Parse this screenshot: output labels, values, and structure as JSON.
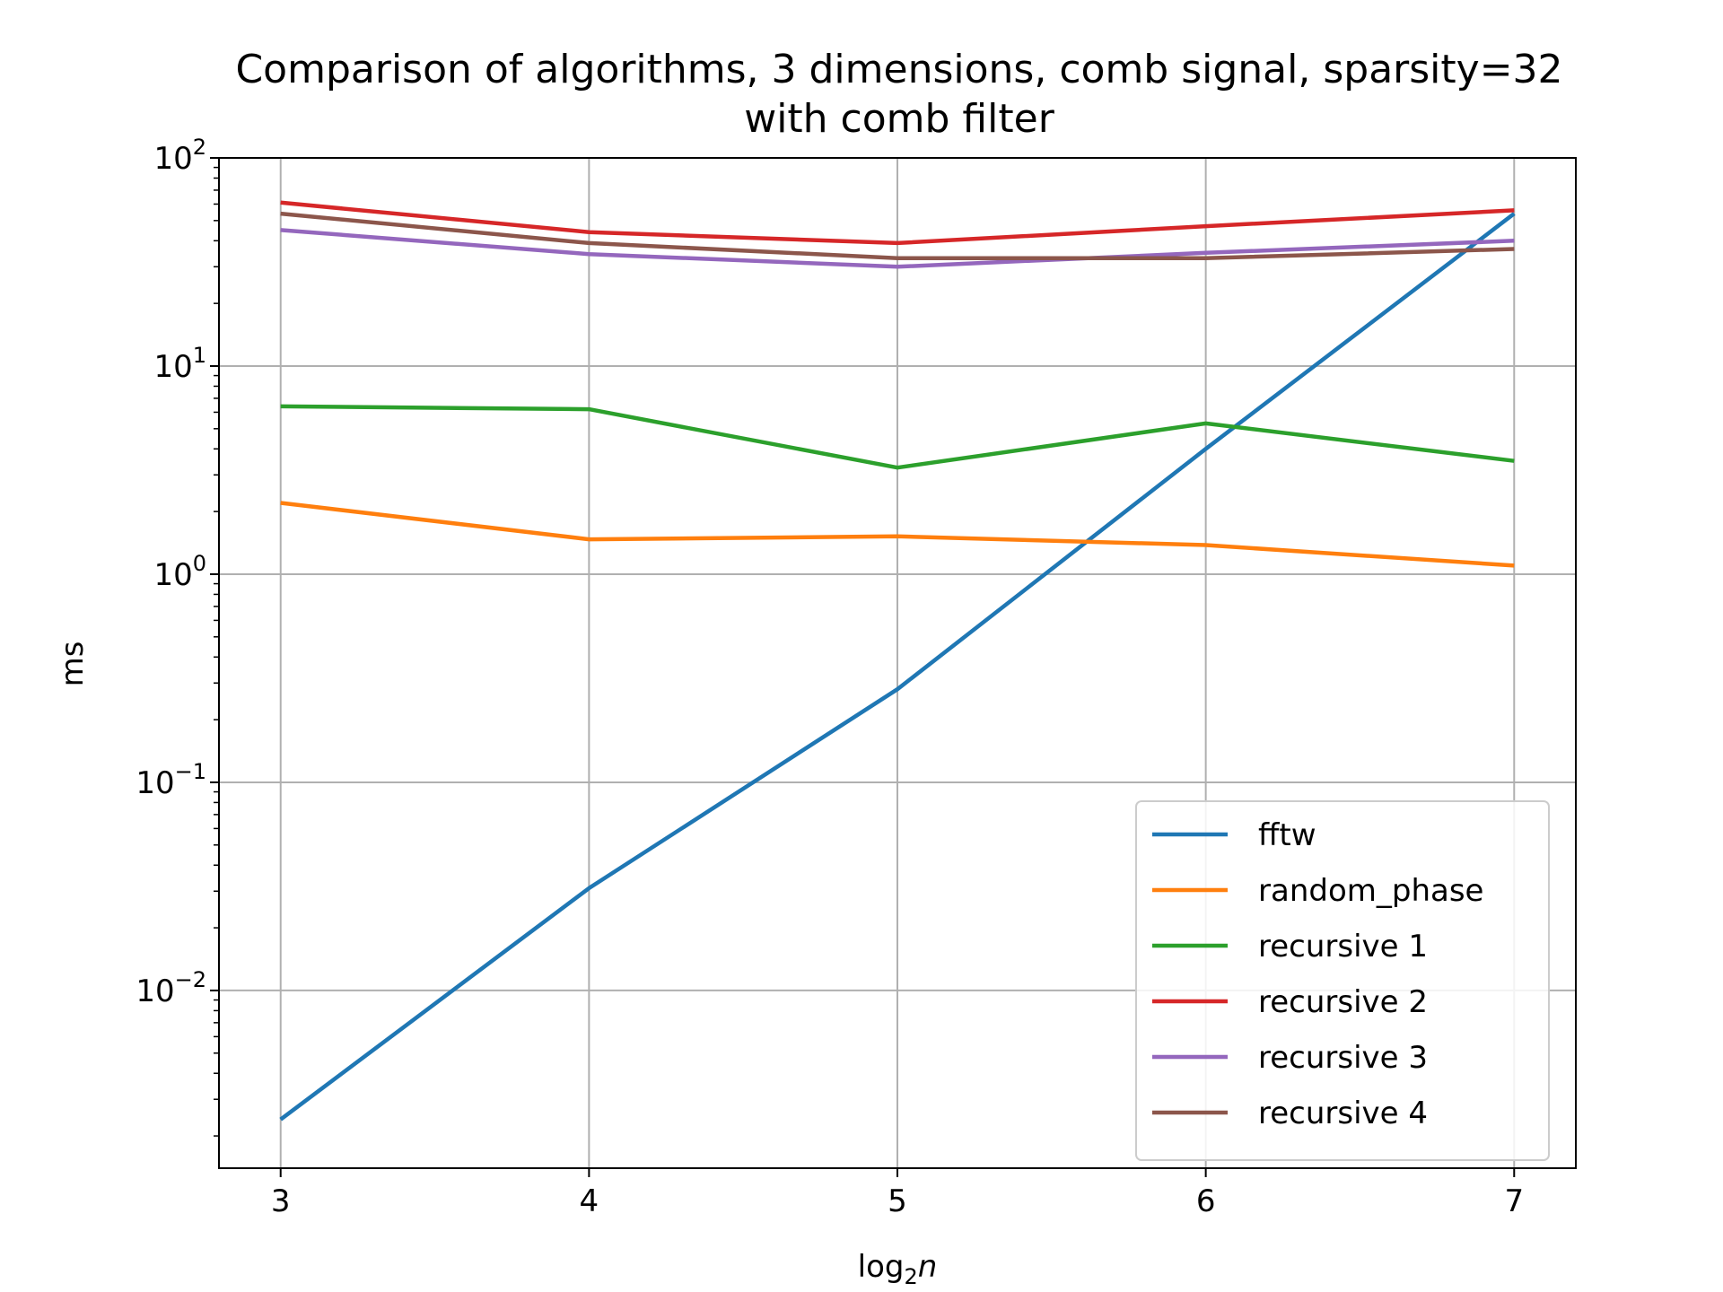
{
  "chart_data": {
    "type": "line",
    "title_line1": "Comparison of algorithms, 3 dimensions, comb signal, sparsity=32",
    "title_line2": "with comb filter",
    "xlabel_base": "log",
    "xlabel_sub": "2",
    "xlabel_var": "n",
    "ylabel": "ms",
    "y_scale": "log",
    "grid": true,
    "legend_position": "lower-right",
    "xlim": [
      2.8,
      7.2
    ],
    "ylim": [
      0.0014,
      100
    ],
    "x": [
      3,
      4,
      5,
      6,
      7
    ],
    "x_tick_labels": [
      "3",
      "4",
      "5",
      "6",
      "7"
    ],
    "y_ticks": [
      {
        "value": 0.01,
        "base": "10",
        "exp": "−2"
      },
      {
        "value": 0.1,
        "base": "10",
        "exp": "−1"
      },
      {
        "value": 1,
        "base": "10",
        "exp": "0"
      },
      {
        "value": 10,
        "base": "10",
        "exp": "1"
      },
      {
        "value": 100,
        "base": "10",
        "exp": "2"
      }
    ],
    "series": [
      {
        "name": "fftw",
        "color": "#1f77b4",
        "values": [
          0.0024,
          0.031,
          0.28,
          4.0,
          54
        ]
      },
      {
        "name": "random_phase",
        "color": "#ff7f0e",
        "values": [
          2.2,
          1.47,
          1.52,
          1.38,
          1.1
        ]
      },
      {
        "name": "recursive 1",
        "color": "#2ca02c",
        "values": [
          6.4,
          6.2,
          3.25,
          5.3,
          3.5
        ]
      },
      {
        "name": "recursive 2",
        "color": "#d62728",
        "values": [
          61,
          44,
          39,
          47,
          56
        ]
      },
      {
        "name": "recursive 3",
        "color": "#9467bd",
        "values": [
          45,
          34.5,
          30,
          35,
          40
        ]
      },
      {
        "name": "recursive 4",
        "color": "#8c564b",
        "values": [
          54,
          39,
          33,
          33,
          36.5
        ]
      }
    ]
  }
}
